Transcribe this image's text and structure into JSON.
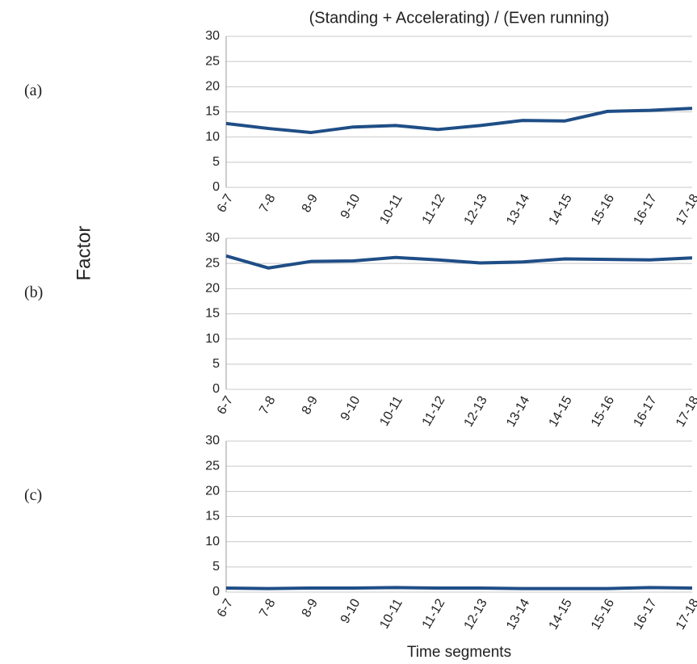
{
  "chart_data": [
    {
      "type": "line",
      "panel_label": "(a)",
      "title": "(Standing + Accelerating) / (Even running)",
      "categories": [
        "6-7",
        "7-8",
        "8-9",
        "9-10",
        "10-11",
        "11-12",
        "12-13",
        "13-14",
        "14-15",
        "15-16",
        "16-17",
        "17-18"
      ],
      "series": [
        {
          "color": "#1f4e86",
          "values": [
            12.7,
            11.7,
            10.9,
            12.0,
            12.3,
            11.5,
            12.3,
            13.3,
            13.2,
            15.1,
            15.3,
            15.7
          ]
        }
      ],
      "ylim": [
        0,
        30
      ],
      "yticks": [
        0,
        5,
        10,
        15,
        20,
        25,
        30
      ],
      "grid": true
    },
    {
      "type": "line",
      "panel_label": "(b)",
      "ylabel": "Factor",
      "categories": [
        "6-7",
        "7-8",
        "8-9",
        "9-10",
        "10-11",
        "11-12",
        "12-13",
        "13-14",
        "14-15",
        "15-16",
        "16-17",
        "17-18"
      ],
      "series": [
        {
          "color": "#1f4e86",
          "values": [
            26.5,
            24.1,
            25.4,
            25.5,
            26.2,
            25.7,
            25.1,
            25.3,
            25.9,
            25.8,
            25.7,
            26.1
          ]
        }
      ],
      "ylim": [
        0,
        30
      ],
      "yticks": [
        0,
        5,
        10,
        15,
        20,
        25,
        30
      ],
      "grid": true
    },
    {
      "type": "line",
      "panel_label": "(c)",
      "xlabel": "Time segments",
      "categories": [
        "6-7",
        "7-8",
        "8-9",
        "9-10",
        "10-11",
        "11-12",
        "12-13",
        "13-14",
        "14-15",
        "15-16",
        "16-17",
        "17-18"
      ],
      "series": [
        {
          "color": "#1f4e86",
          "values": [
            0.8,
            0.7,
            0.8,
            0.8,
            0.9,
            0.8,
            0.8,
            0.7,
            0.7,
            0.7,
            0.9,
            0.8
          ]
        }
      ],
      "ylim": [
        0,
        30
      ],
      "yticks": [
        0,
        5,
        10,
        15,
        20,
        25,
        30
      ],
      "grid": true
    }
  ]
}
